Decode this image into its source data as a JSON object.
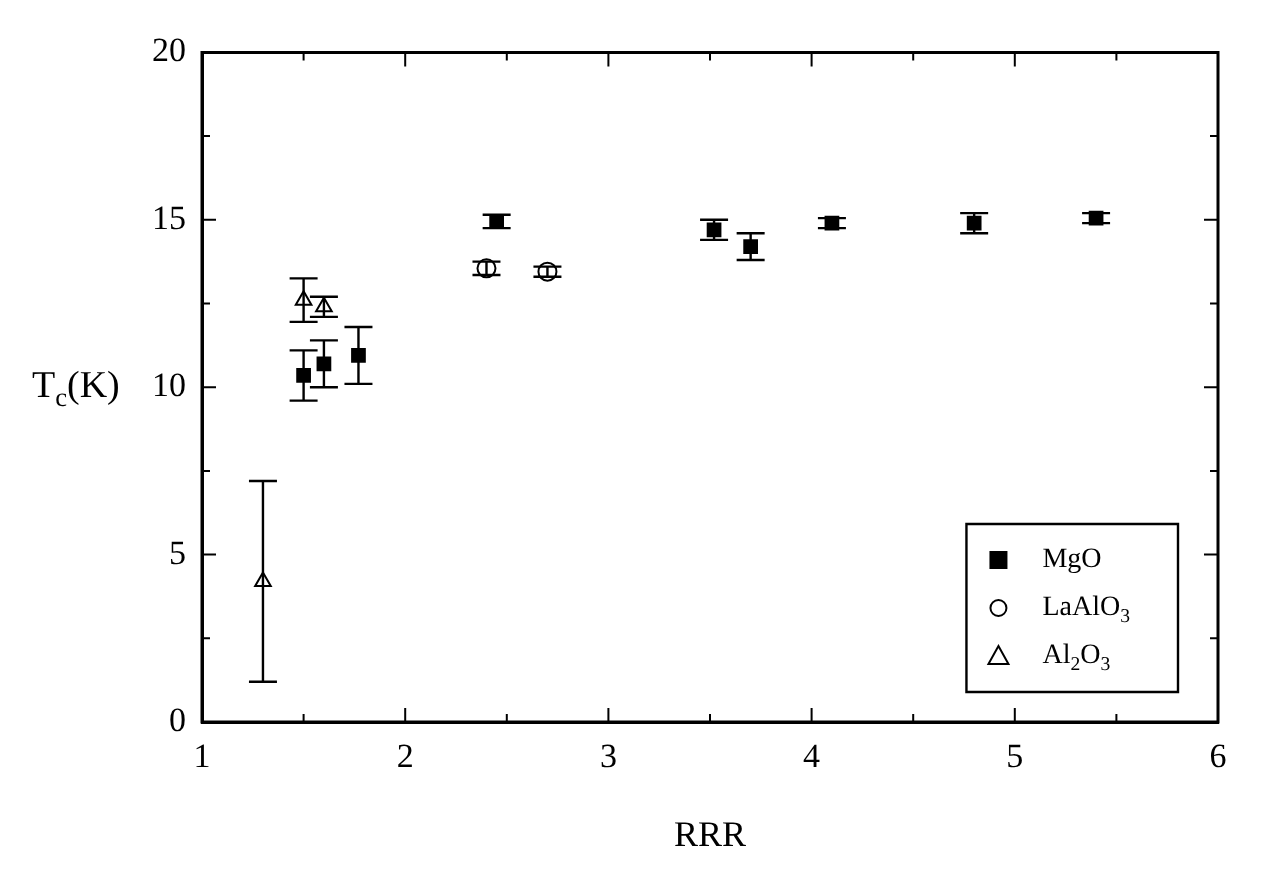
{
  "chart_data": {
    "type": "scatter",
    "xlabel": "RRR",
    "ylabel": "T$_{c}$(K)",
    "xlim": [
      1,
      6
    ],
    "ylim": [
      0,
      20
    ],
    "xticks": [
      1,
      {
        "value": 1.5,
        "label": null
      },
      2,
      {
        "value": 2.5,
        "label": null
      },
      3,
      {
        "value": 3.5,
        "label": null
      },
      4,
      {
        "value": 4.5,
        "label": null
      },
      5,
      {
        "value": 5.5,
        "label": null
      },
      6
    ],
    "yticks": [
      0,
      {
        "value": 2.5,
        "label": null
      },
      5,
      {
        "value": 7.5,
        "label": null
      },
      10,
      {
        "value": 12.5,
        "label": null
      },
      15,
      {
        "value": 17.5,
        "label": null
      },
      20
    ],
    "grid": false,
    "legend": "bottom right",
    "series": [
      {
        "name": "MgO",
        "color": "#000000",
        "marker": "square",
        "x": [
          1.5,
          1.6,
          1.77,
          2.45,
          3.52,
          3.7,
          4.1,
          4.8,
          5.4
        ],
        "values": [
          10.35,
          10.7,
          10.95,
          14.95,
          14.7,
          14.2,
          14.9,
          14.9,
          15.05
        ],
        "errors": [
          0.75,
          0.7,
          0.85,
          0.2,
          0.3,
          0.4,
          0.15,
          0.3,
          0.15
        ]
      },
      {
        "name": "LaAlO$_{3}$",
        "color": "#000000",
        "marker": "circle",
        "x": [
          2.4,
          2.7
        ],
        "values": [
          13.55,
          13.45
        ],
        "errors": [
          0.2,
          0.15
        ]
      },
      {
        "name": "Al$_{2}$O$_{3}$",
        "color": "#000000",
        "marker": "triangle",
        "x": [
          1.3,
          1.5,
          1.6
        ],
        "values": [
          4.2,
          12.6,
          12.4
        ],
        "errors": [
          3,
          0.65,
          0.3
        ]
      }
    ]
  }
}
